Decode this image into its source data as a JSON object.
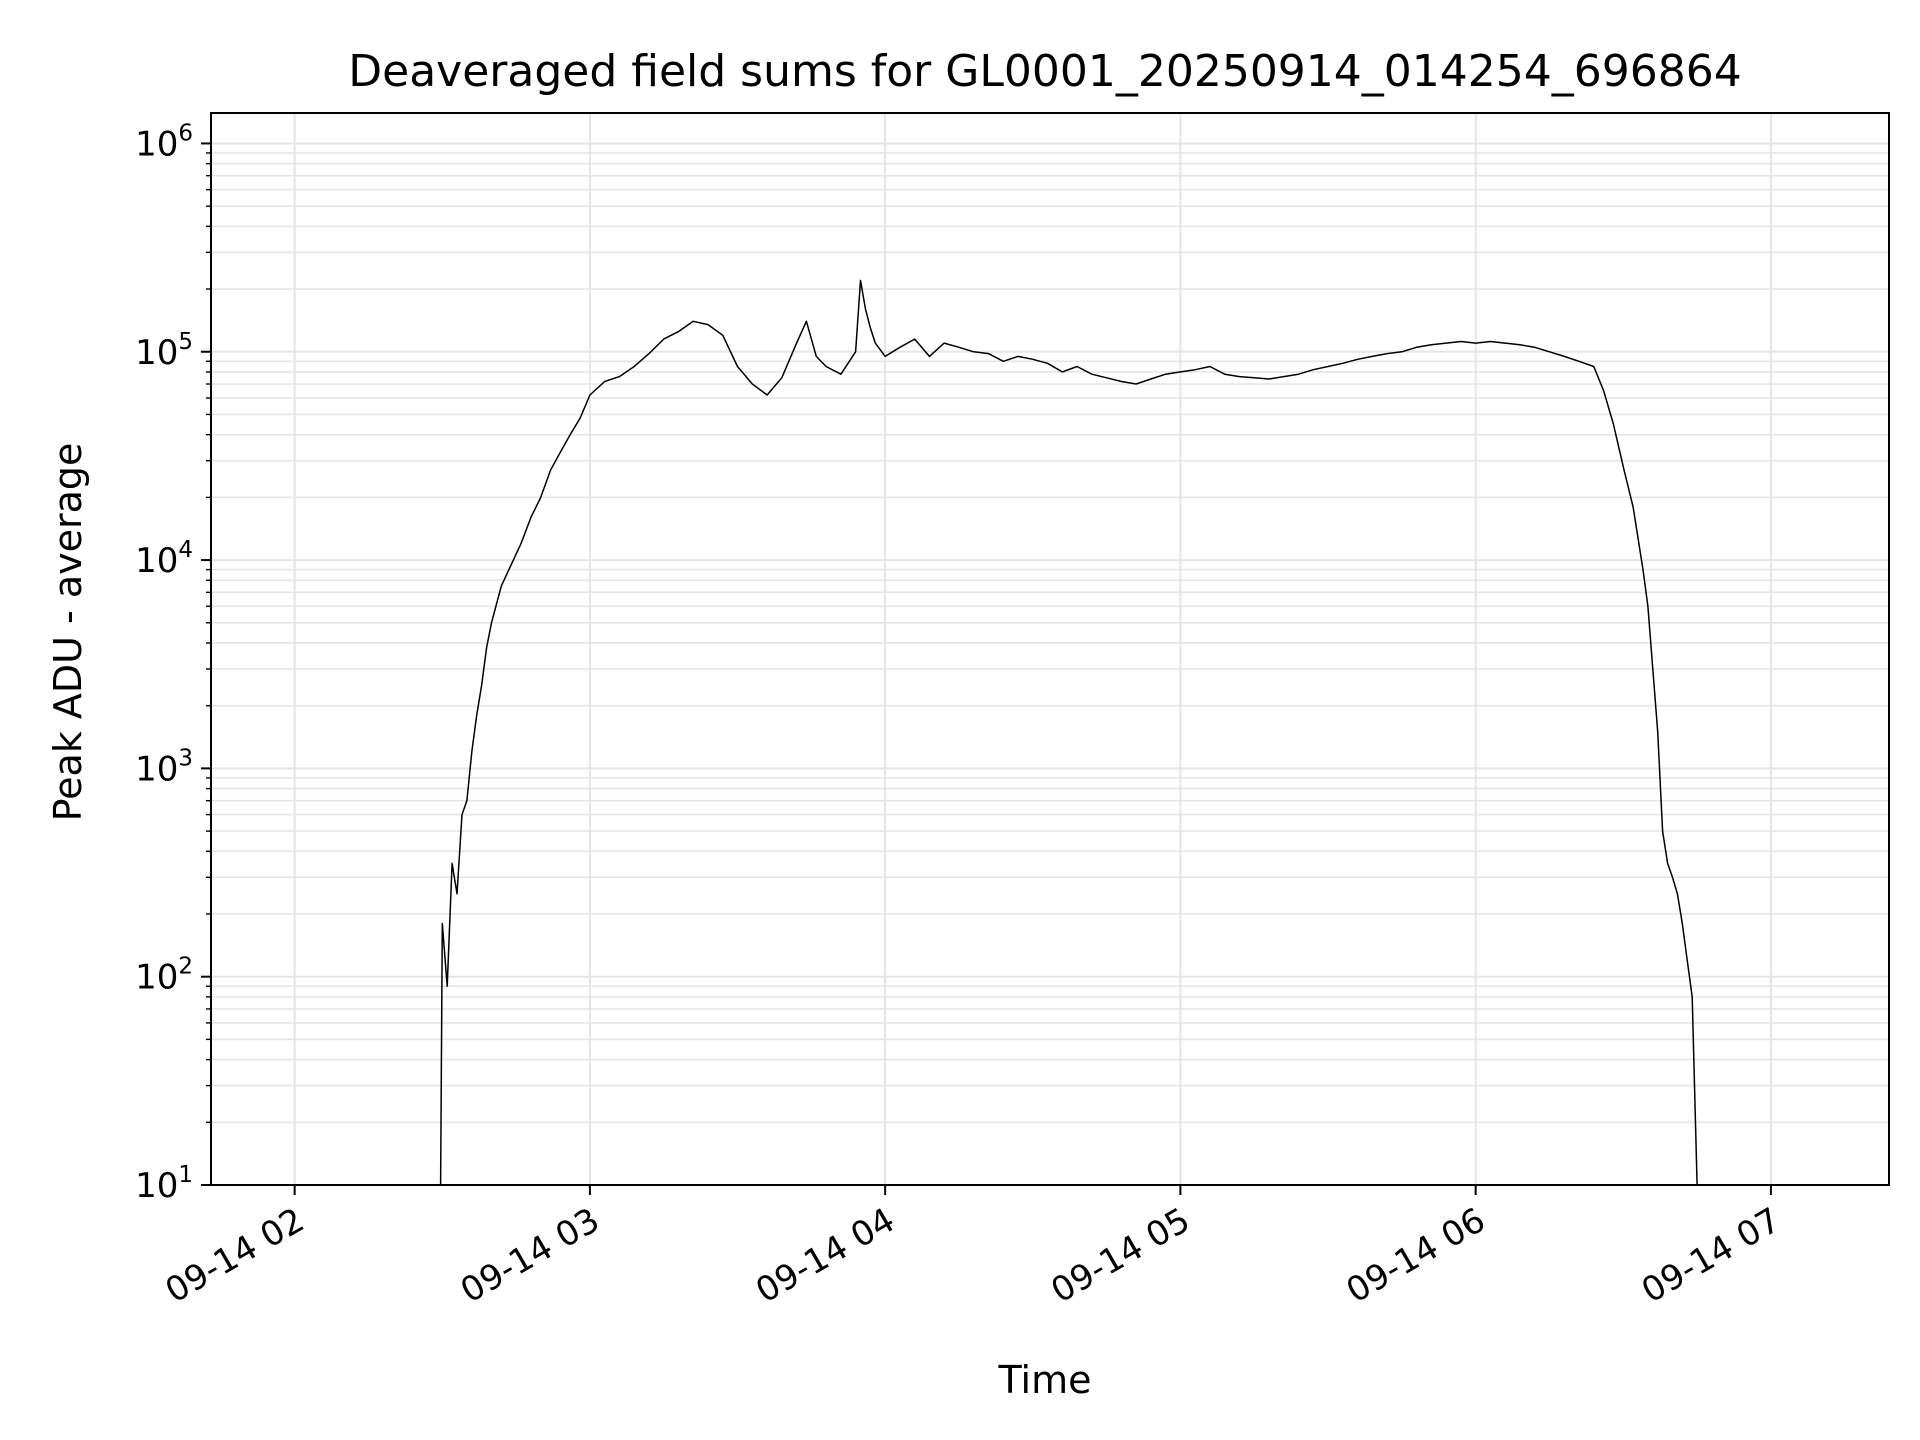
{
  "chart_data": {
    "type": "line",
    "title": "Deaveraged field sums for GL0001_20250914_014254_696864",
    "xlabel": "Time",
    "ylabel": "Peak ADU - average",
    "yscale": "log",
    "ylim": [
      10,
      1400000
    ],
    "xlim": [
      "09-14 01:43",
      "09-14 07:24"
    ],
    "grid": true,
    "line_color": "#000000",
    "grid_color": "#e5e5e5",
    "x_ticks": [
      "09-14 02",
      "09-14 03",
      "09-14 04",
      "09-14 05",
      "09-14 06",
      "09-14 07"
    ],
    "y_ticks": [
      {
        "base": "10",
        "exp": "1"
      },
      {
        "base": "10",
        "exp": "2"
      },
      {
        "base": "10",
        "exp": "3"
      },
      {
        "base": "10",
        "exp": "4"
      },
      {
        "base": "10",
        "exp": "5"
      },
      {
        "base": "10",
        "exp": "6"
      }
    ],
    "series": [
      {
        "x": [
          "09-14 02:29:40",
          "09-14 02:30:00",
          "09-14 02:31:00",
          "09-14 02:32:00",
          "09-14 02:33:00",
          "09-14 02:34:00",
          "09-14 02:35:00",
          "09-14 02:36:00",
          "09-14 02:37:00",
          "09-14 02:38:00",
          "09-14 02:39:00",
          "09-14 02:40:00",
          "09-14 02:42:00",
          "09-14 02:44:00",
          "09-14 02:46:00",
          "09-14 02:48:00",
          "09-14 02:50:00",
          "09-14 02:52:00",
          "09-14 02:54:00",
          "09-14 02:56:00",
          "09-14 02:58:00",
          "09-14 03:00:00",
          "09-14 03:03:00",
          "09-14 03:06:00",
          "09-14 03:09:00",
          "09-14 03:12:00",
          "09-14 03:15:00",
          "09-14 03:18:00",
          "09-14 03:21:00",
          "09-14 03:24:00",
          "09-14 03:27:00",
          "09-14 03:30:00",
          "09-14 03:33:00",
          "09-14 03:36:00",
          "09-14 03:39:00",
          "09-14 03:42:00",
          "09-14 03:44:00",
          "09-14 03:46:00",
          "09-14 03:48:00",
          "09-14 03:51:00",
          "09-14 03:54:00",
          "09-14 03:55:00",
          "09-14 03:56:00",
          "09-14 03:57:00",
          "09-14 03:58:00",
          "09-14 04:00:00",
          "09-14 04:03:00",
          "09-14 04:06:00",
          "09-14 04:09:00",
          "09-14 04:12:00",
          "09-14 04:15:00",
          "09-14 04:18:00",
          "09-14 04:21:00",
          "09-14 04:24:00",
          "09-14 04:27:00",
          "09-14 04:30:00",
          "09-14 04:33:00",
          "09-14 04:36:00",
          "09-14 04:39:00",
          "09-14 04:42:00",
          "09-14 04:45:00",
          "09-14 04:48:00",
          "09-14 04:51:00",
          "09-14 04:54:00",
          "09-14 04:57:00",
          "09-14 05:00:00",
          "09-14 05:03:00",
          "09-14 05:06:00",
          "09-14 05:09:00",
          "09-14 05:12:00",
          "09-14 05:15:00",
          "09-14 05:18:00",
          "09-14 05:21:00",
          "09-14 05:24:00",
          "09-14 05:27:00",
          "09-14 05:30:00",
          "09-14 05:33:00",
          "09-14 05:36:00",
          "09-14 05:39:00",
          "09-14 05:42:00",
          "09-14 05:45:00",
          "09-14 05:48:00",
          "09-14 05:51:00",
          "09-14 05:54:00",
          "09-14 05:57:00",
          "09-14 06:00:00",
          "09-14 06:03:00",
          "09-14 06:06:00",
          "09-14 06:09:00",
          "09-14 06:12:00",
          "09-14 06:15:00",
          "09-14 06:18:00",
          "09-14 06:21:00",
          "09-14 06:24:00",
          "09-14 06:26:00",
          "09-14 06:28:00",
          "09-14 06:30:00",
          "09-14 06:32:00",
          "09-14 06:34:00",
          "09-14 06:35:00",
          "09-14 06:36:00",
          "09-14 06:37:00",
          "09-14 06:38:00",
          "09-14 06:39:00",
          "09-14 06:40:00",
          "09-14 06:41:00",
          "09-14 06:42:00",
          "09-14 06:43:00",
          "09-14 06:44:00",
          "09-14 06:45:00"
        ],
        "values": [
          10,
          180,
          90,
          350,
          250,
          600,
          700,
          1200,
          1800,
          2500,
          3800,
          5000,
          7500,
          9500,
          12000,
          16000,
          20000,
          27000,
          33000,
          40000,
          48000,
          62000,
          72000,
          76000,
          85000,
          98000,
          115000,
          125000,
          140000,
          135000,
          120000,
          85000,
          70000,
          62000,
          75000,
          110000,
          140000,
          95000,
          85000,
          78000,
          100000,
          220000,
          160000,
          130000,
          110000,
          95000,
          105000,
          115000,
          95000,
          110000,
          105000,
          100000,
          98000,
          90000,
          95000,
          92000,
          88000,
          80000,
          85000,
          78000,
          75000,
          72000,
          70000,
          74000,
          78000,
          80000,
          82000,
          85000,
          78000,
          76000,
          75000,
          74000,
          76000,
          78000,
          82000,
          85000,
          88000,
          92000,
          95000,
          98000,
          100000,
          105000,
          108000,
          110000,
          112000,
          110000,
          112000,
          110000,
          108000,
          105000,
          100000,
          95000,
          90000,
          85000,
          65000,
          45000,
          28000,
          18000,
          9000,
          6000,
          3000,
          1500,
          500,
          350,
          300,
          250,
          180,
          120,
          80,
          10
        ]
      }
    ]
  }
}
